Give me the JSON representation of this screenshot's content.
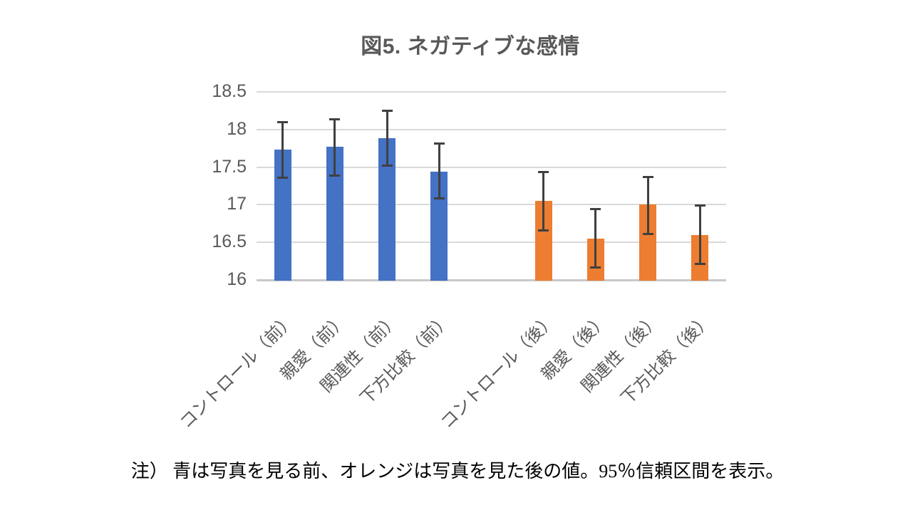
{
  "chart_data": {
    "type": "bar",
    "title": "図5. ネガティブな感情",
    "note": "注） 青は写真を見る前、オレンジは写真を見た後の値。95％信頼区間を表示。",
    "ylim": [
      16,
      18.5
    ],
    "yticks": [
      "16",
      "16.5",
      "17",
      "17.5",
      "18",
      "18.5"
    ],
    "grid": "horizontal",
    "legend_position": "none",
    "error_bars": "95% confidence interval",
    "colors": {
      "before": "#4472C4",
      "after": "#ED7D31",
      "error_bar": "#404040"
    },
    "series_meaning": {
      "before": "写真を見る前",
      "after": "写真を見た後"
    },
    "bars": [
      {
        "label": "コントロール（前）",
        "value": 17.73,
        "ci": [
          17.36,
          18.1
        ],
        "group": "before",
        "slot": 0
      },
      {
        "label": "親愛（前）",
        "value": 17.77,
        "ci": [
          17.39,
          18.14
        ],
        "group": "before",
        "slot": 1
      },
      {
        "label": "関連性（前）",
        "value": 17.88,
        "ci": [
          17.52,
          18.25
        ],
        "group": "before",
        "slot": 2
      },
      {
        "label": "下方比較（前）",
        "value": 17.44,
        "ci": [
          17.08,
          17.81
        ],
        "group": "before",
        "slot": 3
      },
      {
        "label": "コントロール（後）",
        "value": 17.05,
        "ci": [
          16.66,
          17.43
        ],
        "group": "after",
        "slot": 5
      },
      {
        "label": "親愛（後）",
        "value": 16.55,
        "ci": [
          16.17,
          16.94
        ],
        "group": "after",
        "slot": 6
      },
      {
        "label": "関連性（後）",
        "value": 17.0,
        "ci": [
          16.61,
          17.37
        ],
        "group": "after",
        "slot": 7
      },
      {
        "label": "下方比較（後）",
        "value": 16.6,
        "ci": [
          16.21,
          16.99
        ],
        "group": "after",
        "slot": 8
      }
    ]
  }
}
